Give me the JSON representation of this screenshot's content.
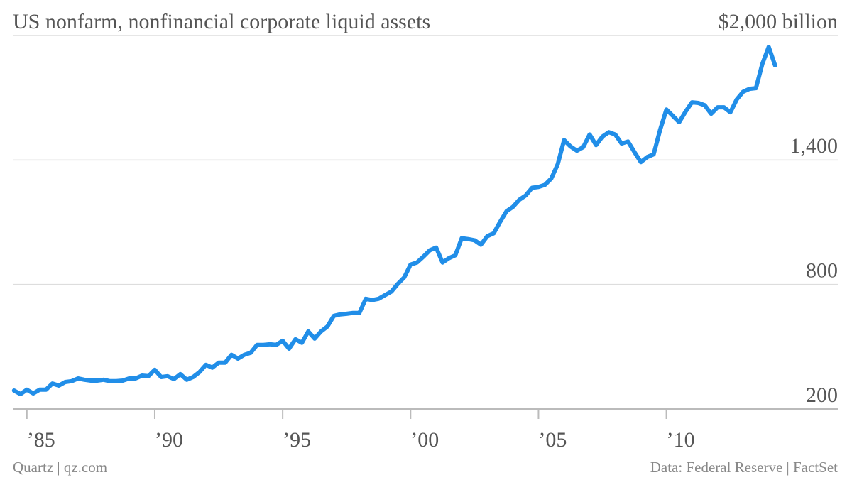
{
  "chart_data": {
    "type": "line",
    "title": "US nonfarm, nonfinancial corporate liquid assets",
    "credit": "Quartz | qz.com",
    "source": "Data: Federal Reserve | FactSet",
    "x": [
      1984.5,
      1984.75,
      1985,
      1985.25,
      1985.5,
      1985.75,
      1986,
      1986.25,
      1986.5,
      1986.75,
      1987,
      1987.25,
      1987.5,
      1987.75,
      1988,
      1988.25,
      1988.5,
      1988.75,
      1989,
      1989.25,
      1989.5,
      1989.75,
      1990,
      1990.25,
      1990.5,
      1990.75,
      1991,
      1991.25,
      1991.5,
      1991.75,
      1992,
      1992.25,
      1992.5,
      1992.75,
      1993,
      1993.25,
      1993.5,
      1993.75,
      1994,
      1994.25,
      1994.5,
      1994.75,
      1995,
      1995.25,
      1995.5,
      1995.75,
      1996,
      1996.25,
      1996.5,
      1996.75,
      1997,
      1997.25,
      1997.5,
      1997.75,
      1998,
      1998.25,
      1998.5,
      1998.75,
      1999,
      1999.25,
      1999.5,
      1999.75,
      2000,
      2000.25,
      2000.5,
      2000.75,
      2001,
      2001.25,
      2001.5,
      2001.75,
      2002,
      2002.25,
      2002.5,
      2002.75,
      2003,
      2003.25,
      2003.5,
      2003.75,
      2004,
      2004.25,
      2004.5,
      2004.75,
      2005,
      2005.25,
      2005.5,
      2005.75,
      2006,
      2006.25,
      2006.5,
      2006.75,
      2007,
      2007.25,
      2007.5,
      2007.75,
      2008,
      2008.25,
      2008.5,
      2008.75,
      2009,
      2009.25,
      2009.5,
      2009.75,
      2010,
      2010.25,
      2010.5,
      2010.75,
      2011,
      2011.25,
      2011.5,
      2011.75,
      2012,
      2012.25,
      2012.5,
      2012.75,
      2013,
      2013.25,
      2013.5,
      2013.75,
      2014,
      2014.25
    ],
    "series": [
      {
        "color": "#218ee8",
        "values": [
          289,
          272,
          293,
          275,
          293,
          293,
          323,
          313,
          330,
          334,
          347,
          341,
          337,
          337,
          341,
          334,
          334,
          337,
          347,
          347,
          361,
          358,
          389,
          354,
          358,
          344,
          368,
          341,
          354,
          378,
          413,
          399,
          423,
          423,
          461,
          443,
          461,
          471,
          509,
          509,
          512,
          509,
          529,
          491,
          536,
          519,
          574,
          539,
          574,
          598,
          649,
          656,
          659,
          663,
          663,
          731,
          725,
          731,
          749,
          766,
          803,
          834,
          896,
          906,
          934,
          965,
          978,
          906,
          927,
          941,
          1023,
          1019,
          1013,
          992,
          1033,
          1047,
          1102,
          1153,
          1174,
          1208,
          1229,
          1266,
          1270,
          1280,
          1311,
          1379,
          1496,
          1465,
          1445,
          1462,
          1523,
          1472,
          1513,
          1534,
          1523,
          1479,
          1489,
          1438,
          1390,
          1414,
          1427,
          1544,
          1643,
          1613,
          1582,
          1633,
          1678,
          1675,
          1664,
          1623,
          1654,
          1654,
          1630,
          1692,
          1729,
          1743,
          1746,
          1863,
          1945,
          1856
        ]
      }
    ],
    "xlim": [
      1984.45,
      2016.7
    ],
    "ylim": [
      200,
      2000
    ],
    "xticks": [
      {
        "value": 1985,
        "label": "’85"
      },
      {
        "value": 1990,
        "label": "’90"
      },
      {
        "value": 1995,
        "label": "’95"
      },
      {
        "value": 2000,
        "label": "’00"
      },
      {
        "value": 2005,
        "label": "’05"
      },
      {
        "value": 2010,
        "label": "’10"
      }
    ],
    "yticks": [
      200,
      800,
      {
        "value": 1400,
        "label": "1,400"
      },
      {
        "value": 2000,
        "label": "$2,000 billion"
      }
    ],
    "grid": true
  }
}
